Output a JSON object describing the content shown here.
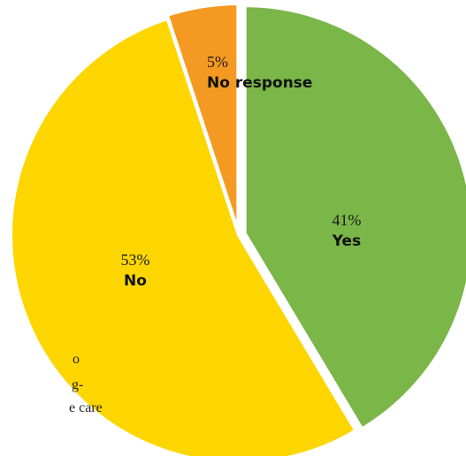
{
  "chart_data": {
    "type": "pie",
    "slices": [
      {
        "label": "Yes",
        "value": 41,
        "value_label": "41%",
        "color": "#7ab648"
      },
      {
        "label": "No",
        "value": 53,
        "value_label": "53%",
        "color": "#fdd600"
      },
      {
        "label": "No response",
        "value": 5,
        "value_label": "5%",
        "color": "#f49a22"
      }
    ],
    "start_angle_deg": 0,
    "direction": "clockwise",
    "exploded_slices": [
      "Yes",
      "No response"
    ]
  },
  "side_text_fragments": [
    "o",
    "g-",
    "e care"
  ]
}
